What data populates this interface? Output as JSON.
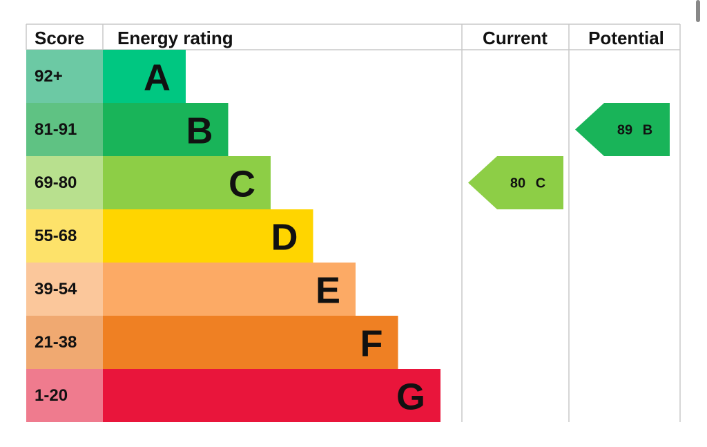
{
  "header": {
    "score": "Score",
    "rating": "Energy rating",
    "current": "Current",
    "potential": "Potential"
  },
  "bands": [
    {
      "score": "92+",
      "letter": "A",
      "bar_color": "#00c781",
      "score_color": "#6cc9a4"
    },
    {
      "score": "81-91",
      "letter": "B",
      "bar_color": "#19b459",
      "score_color": "#5fc283"
    },
    {
      "score": "69-80",
      "letter": "C",
      "bar_color": "#8dce46",
      "score_color": "#b8e08e"
    },
    {
      "score": "55-68",
      "letter": "D",
      "bar_color": "#ffd500",
      "score_color": "#fde26a"
    },
    {
      "score": "39-54",
      "letter": "E",
      "bar_color": "#fcaa65",
      "score_color": "#fbc79b"
    },
    {
      "score": "21-38",
      "letter": "F",
      "bar_color": "#ef8023",
      "score_color": "#f0a971"
    },
    {
      "score": "1-20",
      "letter": "G",
      "bar_color": "#e9153b",
      "score_color": "#ef7b8e"
    }
  ],
  "current": {
    "value": 80,
    "letter": "C"
  },
  "potential": {
    "value": 89,
    "letter": "B"
  }
}
